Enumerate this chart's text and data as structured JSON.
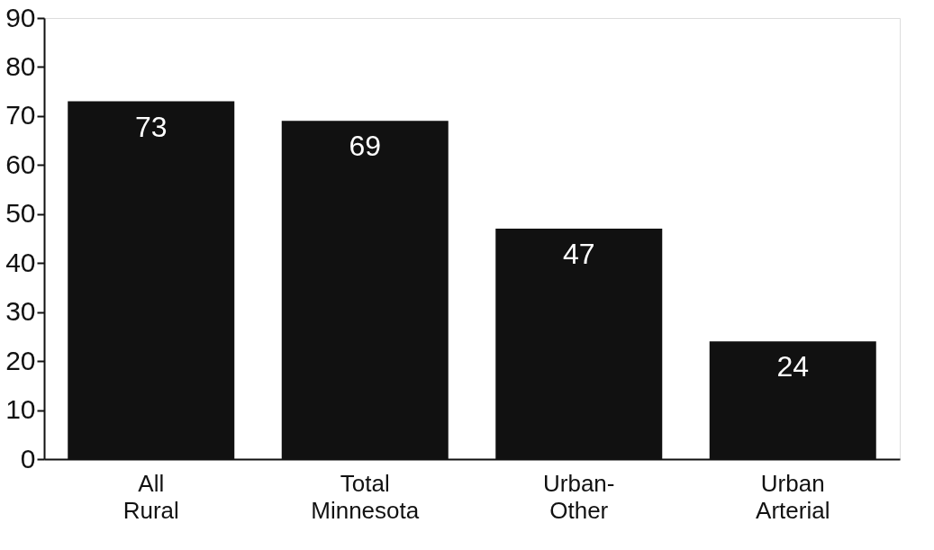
{
  "chart_data": {
    "type": "bar",
    "categories": [
      "All\nRural",
      "Total\nMinnesota",
      "Urban-\nOther",
      "Urban\nArterial"
    ],
    "values": [
      73,
      69,
      47,
      24
    ],
    "color": "#111111",
    "ylim": [
      0,
      90
    ],
    "yticks": [
      0,
      10,
      20,
      30,
      40,
      50,
      60,
      70,
      80,
      90
    ],
    "grid": false,
    "data_labels": true
  }
}
